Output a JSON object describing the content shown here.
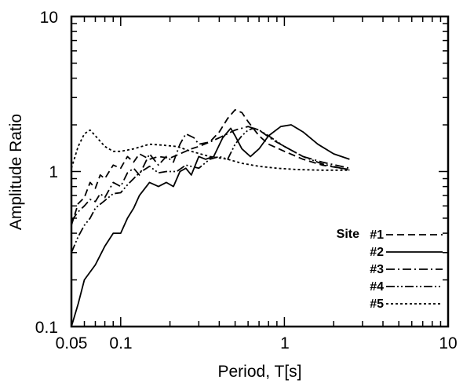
{
  "chart_data": {
    "type": "line",
    "title": "",
    "xlabel": "Period, T[s]",
    "ylabel": "Amplitude Ratio",
    "xscale": "log",
    "yscale": "log",
    "xlim": [
      0.05,
      10
    ],
    "ylim": [
      0.1,
      10
    ],
    "x_tick_labels": [
      "0.05",
      "0.1",
      "1",
      "10"
    ],
    "y_tick_labels": [
      "0.1",
      "1",
      "10"
    ],
    "grid": false,
    "legend": {
      "title": "Site",
      "placement": "bottom-right"
    },
    "series": [
      {
        "name": "#1",
        "style": "dashed",
        "points": [
          [
            0.05,
            0.45
          ],
          [
            0.055,
            0.62
          ],
          [
            0.06,
            0.68
          ],
          [
            0.065,
            0.85
          ],
          [
            0.07,
            0.78
          ],
          [
            0.075,
            0.95
          ],
          [
            0.08,
            0.9
          ],
          [
            0.09,
            1.1
          ],
          [
            0.1,
            1.05
          ],
          [
            0.11,
            1.25
          ],
          [
            0.12,
            1.15
          ],
          [
            0.13,
            1.3
          ],
          [
            0.15,
            1.2
          ],
          [
            0.17,
            1.25
          ],
          [
            0.2,
            1.22
          ],
          [
            0.23,
            1.3
          ],
          [
            0.27,
            1.4
          ],
          [
            0.3,
            1.45
          ],
          [
            0.35,
            1.55
          ],
          [
            0.4,
            1.8
          ],
          [
            0.45,
            2.2
          ],
          [
            0.5,
            2.5
          ],
          [
            0.55,
            2.4
          ],
          [
            0.6,
            2.1
          ],
          [
            0.7,
            1.7
          ],
          [
            0.8,
            1.5
          ],
          [
            1.0,
            1.35
          ],
          [
            1.3,
            1.2
          ],
          [
            1.7,
            1.1
          ],
          [
            2.5,
            1.03
          ]
        ]
      },
      {
        "name": "#2",
        "style": "solid",
        "points": [
          [
            0.05,
            0.1
          ],
          [
            0.055,
            0.14
          ],
          [
            0.06,
            0.2
          ],
          [
            0.07,
            0.25
          ],
          [
            0.08,
            0.33
          ],
          [
            0.09,
            0.4
          ],
          [
            0.1,
            0.4
          ],
          [
            0.11,
            0.5
          ],
          [
            0.12,
            0.58
          ],
          [
            0.13,
            0.7
          ],
          [
            0.15,
            0.85
          ],
          [
            0.17,
            0.8
          ],
          [
            0.19,
            0.85
          ],
          [
            0.21,
            0.8
          ],
          [
            0.23,
            1.0
          ],
          [
            0.25,
            1.05
          ],
          [
            0.27,
            0.95
          ],
          [
            0.3,
            1.25
          ],
          [
            0.33,
            1.2
          ],
          [
            0.37,
            1.25
          ],
          [
            0.42,
            1.65
          ],
          [
            0.47,
            1.9
          ],
          [
            0.5,
            1.7
          ],
          [
            0.55,
            1.4
          ],
          [
            0.62,
            1.25
          ],
          [
            0.7,
            1.4
          ],
          [
            0.8,
            1.7
          ],
          [
            0.95,
            1.95
          ],
          [
            1.1,
            2.0
          ],
          [
            1.3,
            1.8
          ],
          [
            1.6,
            1.5
          ],
          [
            2.0,
            1.3
          ],
          [
            2.5,
            1.2
          ]
        ]
      },
      {
        "name": "#3",
        "style": "dash-dot",
        "points": [
          [
            0.05,
            0.48
          ],
          [
            0.055,
            0.55
          ],
          [
            0.06,
            0.6
          ],
          [
            0.065,
            0.66
          ],
          [
            0.07,
            0.64
          ],
          [
            0.075,
            0.72
          ],
          [
            0.08,
            0.68
          ],
          [
            0.09,
            0.85
          ],
          [
            0.1,
            0.8
          ],
          [
            0.11,
            0.98
          ],
          [
            0.12,
            1.05
          ],
          [
            0.13,
            0.95
          ],
          [
            0.15,
            1.3
          ],
          [
            0.17,
            1.1
          ],
          [
            0.19,
            1.25
          ],
          [
            0.21,
            1.15
          ],
          [
            0.23,
            1.5
          ],
          [
            0.25,
            1.75
          ],
          [
            0.28,
            1.65
          ],
          [
            0.3,
            1.5
          ],
          [
            0.35,
            1.55
          ],
          [
            0.4,
            1.65
          ],
          [
            0.5,
            1.85
          ],
          [
            0.6,
            1.95
          ],
          [
            0.7,
            1.85
          ],
          [
            0.85,
            1.6
          ],
          [
            1.0,
            1.45
          ],
          [
            1.3,
            1.25
          ],
          [
            1.7,
            1.15
          ],
          [
            2.5,
            1.05
          ]
        ]
      },
      {
        "name": "#4",
        "style": "dash-dot-dot",
        "points": [
          [
            0.05,
            0.3
          ],
          [
            0.055,
            0.38
          ],
          [
            0.06,
            0.45
          ],
          [
            0.065,
            0.5
          ],
          [
            0.07,
            0.58
          ],
          [
            0.08,
            0.65
          ],
          [
            0.09,
            0.72
          ],
          [
            0.1,
            0.73
          ],
          [
            0.11,
            0.82
          ],
          [
            0.12,
            0.9
          ],
          [
            0.13,
            0.98
          ],
          [
            0.15,
            1.08
          ],
          [
            0.17,
            0.98
          ],
          [
            0.19,
            1.0
          ],
          [
            0.22,
            1.0
          ],
          [
            0.25,
            1.1
          ],
          [
            0.3,
            1.05
          ],
          [
            0.35,
            1.2
          ],
          [
            0.4,
            1.25
          ],
          [
            0.45,
            1.2
          ],
          [
            0.5,
            1.5
          ],
          [
            0.55,
            1.7
          ],
          [
            0.6,
            1.85
          ],
          [
            0.65,
            1.9
          ],
          [
            0.7,
            1.85
          ],
          [
            0.8,
            1.7
          ],
          [
            1.0,
            1.45
          ],
          [
            1.3,
            1.25
          ],
          [
            1.7,
            1.12
          ],
          [
            2.5,
            1.02
          ]
        ]
      },
      {
        "name": "#5",
        "style": "dotted",
        "points": [
          [
            0.05,
            1.05
          ],
          [
            0.055,
            1.45
          ],
          [
            0.06,
            1.75
          ],
          [
            0.065,
            1.85
          ],
          [
            0.07,
            1.7
          ],
          [
            0.08,
            1.45
          ],
          [
            0.09,
            1.35
          ],
          [
            0.1,
            1.35
          ],
          [
            0.12,
            1.4
          ],
          [
            0.15,
            1.5
          ],
          [
            0.18,
            1.48
          ],
          [
            0.22,
            1.45
          ],
          [
            0.27,
            1.35
          ],
          [
            0.35,
            1.25
          ],
          [
            0.45,
            1.2
          ],
          [
            0.55,
            1.13
          ],
          [
            0.7,
            1.08
          ],
          [
            0.9,
            1.05
          ],
          [
            1.2,
            1.03
          ],
          [
            1.7,
            1.02
          ],
          [
            2.5,
            1.02
          ]
        ]
      }
    ]
  }
}
